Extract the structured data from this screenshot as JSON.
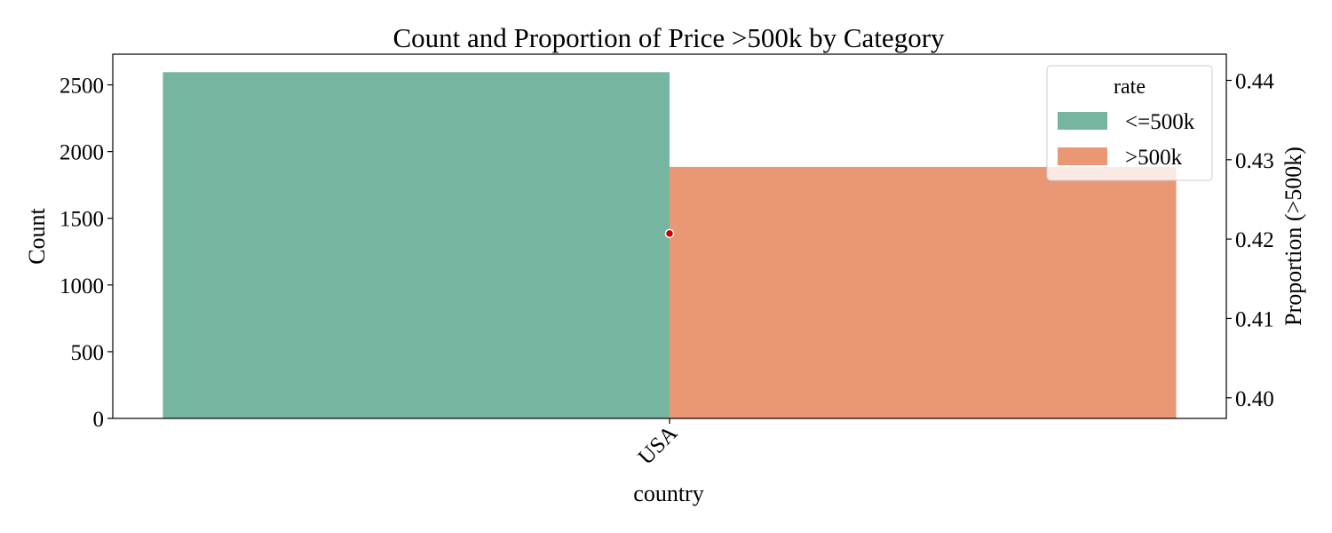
{
  "chart_data": {
    "type": "bar",
    "title": "Count and Proportion of Price >500k by Category",
    "xlabel": "country",
    "ylabel": "Count",
    "y2label": "Proportion (>500k)",
    "categories": [
      "USA"
    ],
    "series": [
      {
        "name": "<=500k",
        "values": [
          2595
        ],
        "color": "#76b5a0"
      },
      {
        "name": ">500k",
        "values": [
          1885
        ],
        "color": "#e99775"
      }
    ],
    "ylim": [
      0,
      2730
    ],
    "yticks": [
      "0",
      "500",
      "1000",
      "1500",
      "2000",
      "2500"
    ],
    "y2lim": [
      0.3974,
      0.4433
    ],
    "y2ticks": [
      "0.40",
      "0.41",
      "0.42",
      "0.43",
      "0.44"
    ],
    "proportion": {
      "values": [
        0.4207
      ],
      "color": "#cc0000"
    },
    "legend": {
      "title": "rate",
      "placement": "top-right"
    },
    "grid": false
  }
}
